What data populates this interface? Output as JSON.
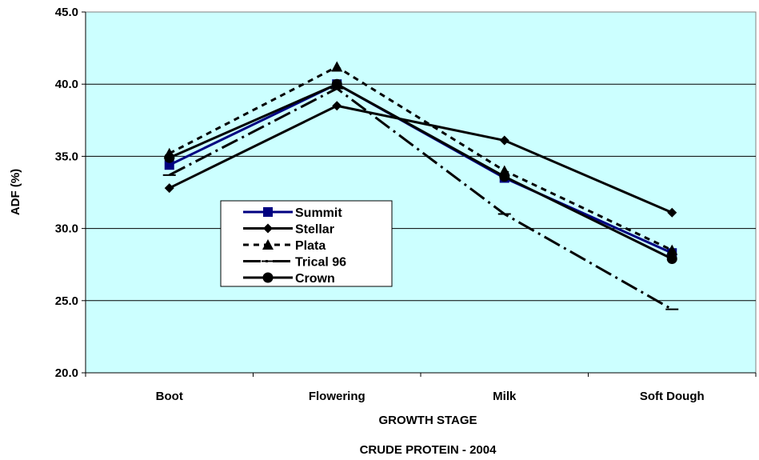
{
  "chart_data": {
    "type": "line",
    "title": "CRUDE PROTEIN - 2004",
    "xlabel": "GROWTH STAGE",
    "ylabel": "ADF (%)",
    "categories": [
      "Boot",
      "Flowering",
      "Milk",
      "Soft Dough"
    ],
    "ylim": [
      20,
      45
    ],
    "yticks": [
      "20.0",
      "25.0",
      "30.0",
      "35.0",
      "40.0",
      "45.0"
    ],
    "grid": true,
    "plot_background": "#ccffff",
    "legend_position": "left-center",
    "series": [
      {
        "name": "Summit",
        "values": [
          34.4,
          40.0,
          33.5,
          28.3
        ],
        "color": "#000080",
        "dash": "solid",
        "marker": "square"
      },
      {
        "name": "Stellar",
        "values": [
          32.8,
          38.5,
          36.1,
          31.1
        ],
        "color": "#000000",
        "dash": "solid",
        "marker": "diamond"
      },
      {
        "name": "Plata",
        "values": [
          35.2,
          41.2,
          34.0,
          28.5
        ],
        "color": "#000000",
        "dash": "dashed",
        "marker": "triangle"
      },
      {
        "name": "Trical 96",
        "values": [
          33.7,
          39.7,
          31.0,
          24.4
        ],
        "color": "#000000",
        "dash": "dash-dot",
        "marker": "dash"
      },
      {
        "name": "Crown",
        "values": [
          34.9,
          40.0,
          33.6,
          27.9
        ],
        "color": "#000000",
        "dash": "solid",
        "marker": "circle"
      }
    ]
  }
}
